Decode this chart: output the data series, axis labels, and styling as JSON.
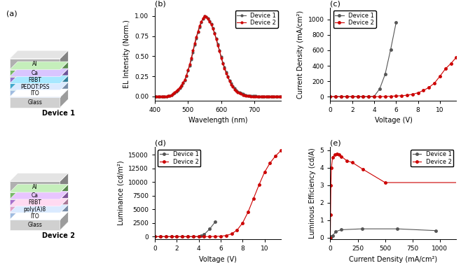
{
  "panel_b": {
    "title": "(b)",
    "xlabel": "Wavelength (nm)",
    "ylabel": "EL Intensity (Norm.)",
    "xlim": [
      400,
      780
    ],
    "ylim": [
      -0.05,
      1.1
    ],
    "device1_x": [
      400,
      405,
      410,
      415,
      420,
      425,
      430,
      435,
      440,
      445,
      450,
      455,
      460,
      465,
      470,
      475,
      480,
      485,
      490,
      495,
      500,
      505,
      510,
      515,
      520,
      525,
      530,
      535,
      540,
      545,
      550,
      555,
      560,
      565,
      570,
      575,
      580,
      585,
      590,
      595,
      600,
      605,
      610,
      615,
      620,
      625,
      630,
      635,
      640,
      645,
      650,
      655,
      660,
      665,
      670,
      675,
      680,
      685,
      690,
      695,
      700,
      705,
      710,
      715,
      720,
      725,
      730,
      735,
      740,
      745,
      750,
      755,
      760,
      765,
      770,
      775,
      780
    ],
    "device1_y": [
      0.0,
      0.0,
      0.0,
      0.0,
      0.0,
      0.0,
      0.0,
      0.0,
      0.01,
      0.01,
      0.02,
      0.03,
      0.04,
      0.06,
      0.08,
      0.1,
      0.13,
      0.16,
      0.2,
      0.25,
      0.32,
      0.38,
      0.46,
      0.55,
      0.64,
      0.72,
      0.8,
      0.86,
      0.92,
      0.96,
      1.0,
      0.99,
      0.97,
      0.94,
      0.9,
      0.85,
      0.79,
      0.72,
      0.65,
      0.57,
      0.49,
      0.42,
      0.36,
      0.3,
      0.25,
      0.2,
      0.16,
      0.13,
      0.1,
      0.08,
      0.06,
      0.05,
      0.04,
      0.03,
      0.02,
      0.02,
      0.01,
      0.01,
      0.01,
      0.01,
      0.01,
      0.01,
      0.0,
      0.0,
      0.0,
      0.0,
      0.0,
      0.0,
      0.0,
      0.0,
      0.0,
      0.0,
      0.0,
      0.0,
      0.0,
      0.0,
      0.0
    ],
    "device2_x": [
      400,
      405,
      410,
      415,
      420,
      425,
      430,
      435,
      440,
      445,
      450,
      455,
      460,
      465,
      470,
      475,
      480,
      485,
      490,
      495,
      500,
      505,
      510,
      515,
      520,
      525,
      530,
      535,
      540,
      545,
      550,
      555,
      560,
      565,
      570,
      575,
      580,
      585,
      590,
      595,
      600,
      605,
      610,
      615,
      620,
      625,
      630,
      635,
      640,
      645,
      650,
      655,
      660,
      665,
      670,
      675,
      680,
      685,
      690,
      695,
      700,
      705,
      710,
      715,
      720,
      725,
      730,
      735,
      740,
      745,
      750,
      755,
      760,
      765,
      770,
      775,
      780
    ],
    "device2_y": [
      0.0,
      0.0,
      0.0,
      0.0,
      0.0,
      0.0,
      0.0,
      0.0,
      0.01,
      0.01,
      0.02,
      0.03,
      0.05,
      0.07,
      0.09,
      0.11,
      0.14,
      0.17,
      0.21,
      0.26,
      0.33,
      0.4,
      0.48,
      0.57,
      0.66,
      0.74,
      0.81,
      0.88,
      0.93,
      0.97,
      1.0,
      0.99,
      0.96,
      0.93,
      0.89,
      0.84,
      0.78,
      0.71,
      0.63,
      0.56,
      0.48,
      0.41,
      0.35,
      0.29,
      0.24,
      0.19,
      0.15,
      0.12,
      0.09,
      0.07,
      0.05,
      0.04,
      0.03,
      0.02,
      0.02,
      0.01,
      0.01,
      0.01,
      0.0,
      0.0,
      0.0,
      0.0,
      0.0,
      0.0,
      0.0,
      0.0,
      0.0,
      0.0,
      0.0,
      0.0,
      0.0,
      0.0,
      0.0,
      0.0,
      0.0,
      0.0,
      0.0
    ]
  },
  "panel_c": {
    "title": "(c)",
    "xlabel": "Voltage (V)",
    "ylabel": "Current Density (mA/cm²)",
    "xlim": [
      0,
      11.5
    ],
    "ylim": [
      -50,
      1150
    ],
    "yticks": [
      0,
      200,
      400,
      600,
      800,
      1000
    ],
    "device1_x": [
      0,
      0.5,
      1,
      1.5,
      2,
      2.5,
      3,
      3.5,
      4.0,
      4.5,
      5.0,
      5.5,
      6.0
    ],
    "device1_y": [
      0,
      0,
      0,
      0,
      0,
      0,
      0,
      0,
      5,
      100,
      290,
      610,
      960
    ],
    "device2_x": [
      0,
      0.5,
      1,
      1.5,
      2,
      2.5,
      3,
      3.5,
      4,
      4.5,
      5,
      5.5,
      6,
      6.5,
      7,
      7.5,
      8,
      8.5,
      9,
      9.5,
      10,
      10.5,
      11,
      11.5
    ],
    "device2_y": [
      0,
      0,
      0,
      0,
      0,
      0,
      0,
      0,
      0,
      0,
      2,
      5,
      8,
      12,
      18,
      30,
      50,
      80,
      120,
      175,
      265,
      360,
      430,
      510
    ]
  },
  "panel_d": {
    "title": "(d)",
    "xlabel": "Voltage (V)",
    "ylabel": "Luminance (cd/m²)",
    "xlim": [
      0,
      11.5
    ],
    "ylim": [
      -500,
      16500
    ],
    "yticks": [
      0,
      2500,
      5000,
      7500,
      10000,
      12500,
      15000
    ],
    "device1_x": [
      0,
      0.5,
      1,
      1.5,
      2,
      2.5,
      3,
      3.5,
      4.0,
      4.2,
      4.5,
      5.0,
      5.5
    ],
    "device1_y": [
      0,
      0,
      0,
      0,
      0,
      0,
      0,
      0,
      20,
      100,
      400,
      1400,
      2700
    ],
    "device2_x": [
      0,
      0.5,
      1,
      1.5,
      2,
      2.5,
      3,
      3.5,
      4,
      4.5,
      5,
      5.5,
      6,
      6.5,
      7,
      7.5,
      8,
      8.5,
      9,
      9.5,
      10,
      10.5,
      11,
      11.5
    ],
    "device2_y": [
      0,
      0,
      0,
      0,
      0,
      0,
      0,
      0,
      0,
      0,
      10,
      30,
      80,
      200,
      500,
      1200,
      2500,
      4500,
      7000,
      9500,
      11800,
      13500,
      14800,
      15800
    ]
  },
  "panel_e": {
    "title": "(e)",
    "xlabel": "Current Density (mA/cm²)",
    "ylabel": "Luminous Efficiency (cd/A)",
    "xlim": [
      0,
      1150
    ],
    "ylim": [
      -0.1,
      5.2
    ],
    "yticks": [
      0,
      1,
      2,
      3,
      4,
      5
    ],
    "device1_x": [
      0,
      5,
      10,
      20,
      50,
      100,
      290,
      610,
      960
    ],
    "device1_y": [
      0,
      0.0,
      0.05,
      0.1,
      0.35,
      0.45,
      0.5,
      0.5,
      0.4
    ],
    "device2_x": [
      0,
      2,
      5,
      10,
      20,
      40,
      60,
      80,
      100,
      150,
      200,
      300,
      500,
      1200
    ],
    "device2_y": [
      0,
      1.3,
      3.0,
      4.0,
      4.6,
      4.75,
      4.8,
      4.75,
      4.65,
      4.4,
      4.3,
      3.9,
      3.15,
      3.15
    ]
  },
  "device1_color": "#555555",
  "device2_color": "#cc0000",
  "device1_label": "Device 1",
  "device2_label": "Device 2",
  "layers1": [
    {
      "color": "#e8e8e8",
      "face_color": "#d0d0d0",
      "label": "Glass"
    },
    {
      "color": "#b8d4f0",
      "face_color": "#a0bce0",
      "label": "ITO"
    },
    {
      "color": "#60c0e0",
      "face_color": "#40a8cc",
      "label": "PEDOT:PSS"
    },
    {
      "color": "#b090e0",
      "face_color": "#9070cc",
      "label": "F8BT"
    },
    {
      "color": "#90cc80",
      "face_color": "#78b868",
      "label": "Ca"
    },
    {
      "color": "#c8c8c8",
      "face_color": "#b0b0b0",
      "label": "Al"
    }
  ],
  "layers2": [
    {
      "color": "#e8e8e8",
      "face_color": "#d0d0d0",
      "label": "Glass"
    },
    {
      "color": "#b8d4f0",
      "face_color": "#a0bce0",
      "label": "ITO"
    },
    {
      "color": "#f0b8d8",
      "face_color": "#e0a0c8",
      "label": "poly(A)8"
    },
    {
      "color": "#c090e0",
      "face_color": "#a870cc",
      "label": "F8BT"
    },
    {
      "color": "#90cc80",
      "face_color": "#78b868",
      "label": "Ca"
    },
    {
      "color": "#c8c8c8",
      "face_color": "#b0b0b0",
      "label": "Al"
    }
  ]
}
